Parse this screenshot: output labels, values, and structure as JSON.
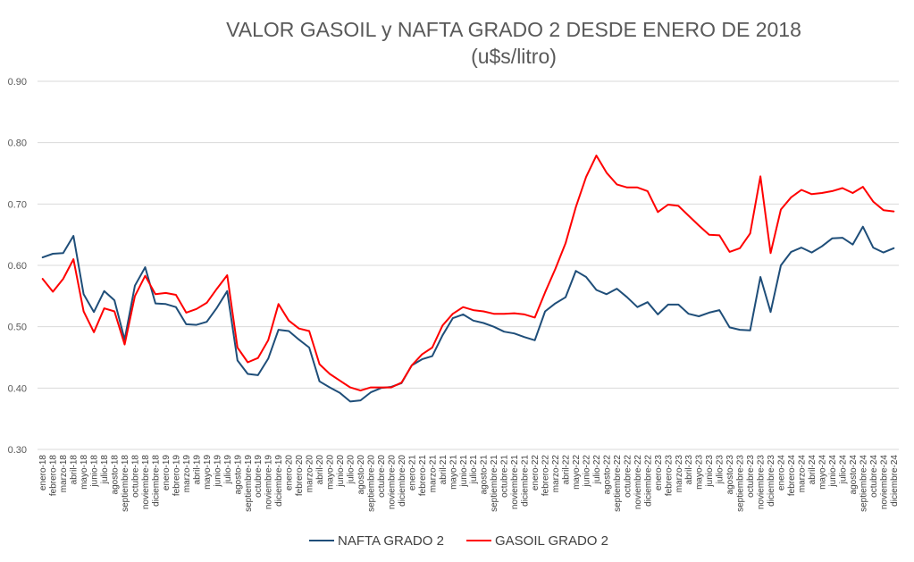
{
  "chart_data": {
    "type": "line",
    "title": "VALOR GASOIL y NAFTA GRADO 2 DESDE ENERO DE 2018",
    "subtitle": "(u$s/litro)",
    "ylim": [
      0.3,
      0.9
    ],
    "yticks": [
      "0.30",
      "0.40",
      "0.50",
      "0.60",
      "0.70",
      "0.80",
      "0.90"
    ],
    "grid": true,
    "legend_position": "bottom",
    "categories": [
      "enero-18",
      "febrero-18",
      "marzo-18",
      "abril-18",
      "mayo-18",
      "junio-18",
      "julio-18",
      "agosto-18",
      "septiembre-18",
      "octubre-18",
      "noviembre-18",
      "diciembre-18",
      "enero-19",
      "febrero-19",
      "marzo-19",
      "abril-19",
      "mayo-19",
      "junio-19",
      "julio-19",
      "agosto-19",
      "septiembre-19",
      "octubre-19",
      "noviembre-19",
      "diciembre-19",
      "enero-20",
      "febrero-20",
      "marzo-20",
      "abril-20",
      "mayo-20",
      "junio-20",
      "julio-20",
      "agosto-20",
      "septiembre-20",
      "octubre-20",
      "noviembre-20",
      "diciembre-20",
      "enero-21",
      "febrero-21",
      "marzo-21",
      "abril-21",
      "mayo-21",
      "junio-21",
      "julio-21",
      "agosto-21",
      "septiembre-21",
      "octubre-21",
      "noviembre-21",
      "diciembre-21",
      "enero-22",
      "febrero-22",
      "marzo-22",
      "abril-22",
      "mayo-22",
      "junio-22",
      "julio-22",
      "agosto-22",
      "septiembre-22",
      "octubre-22",
      "noviembre-22",
      "diciembre-22",
      "enero-23",
      "febrero-23",
      "marzo-23",
      "abril-23",
      "mayo-23",
      "junio-23",
      "julio-23",
      "agosto-23",
      "septiembre-23",
      "octubre-23",
      "noviembre-23",
      "diciembre-23",
      "enero-24",
      "febrero-24",
      "marzo-24",
      "abril-24",
      "mayo-24",
      "junio-24",
      "julio-24",
      "agosto-24",
      "septiembre-24",
      "octubre-24",
      "noviembre-24",
      "diciembre-24"
    ],
    "series": [
      {
        "name": "NAFTA GRADO 2",
        "color": "#1f4e79",
        "values": [
          0.613,
          0.619,
          0.62,
          0.648,
          0.553,
          0.524,
          0.558,
          0.543,
          0.479,
          0.567,
          0.597,
          0.538,
          0.537,
          0.532,
          0.504,
          0.503,
          0.508,
          0.531,
          0.558,
          0.445,
          0.423,
          0.421,
          0.448,
          0.495,
          0.493,
          0.479,
          0.466,
          0.411,
          0.401,
          0.392,
          0.378,
          0.38,
          0.393,
          0.4,
          0.402,
          0.408,
          0.437,
          0.447,
          0.452,
          0.486,
          0.514,
          0.52,
          0.51,
          0.506,
          0.5,
          0.492,
          0.489,
          0.483,
          0.478,
          0.525,
          0.538,
          0.548,
          0.591,
          0.581,
          0.56,
          0.553,
          0.562,
          0.548,
          0.532,
          0.54,
          0.52,
          0.536,
          0.536,
          0.521,
          0.517,
          0.523,
          0.527,
          0.499,
          0.495,
          0.494,
          0.581,
          0.524,
          0.6,
          0.622,
          0.629,
          0.621,
          0.631,
          0.644,
          0.645,
          0.634,
          0.663,
          0.629,
          0.621,
          0.628
        ]
      },
      {
        "name": "GASOIL GRADO 2",
        "color": "#ff0000",
        "values": [
          0.578,
          0.557,
          0.578,
          0.61,
          0.525,
          0.491,
          0.53,
          0.525,
          0.471,
          0.55,
          0.583,
          0.553,
          0.555,
          0.552,
          0.523,
          0.529,
          0.539,
          0.562,
          0.584,
          0.466,
          0.442,
          0.449,
          0.478,
          0.537,
          0.51,
          0.497,
          0.493,
          0.439,
          0.423,
          0.412,
          0.401,
          0.396,
          0.401,
          0.401,
          0.401,
          0.409,
          0.437,
          0.455,
          0.466,
          0.502,
          0.521,
          0.532,
          0.527,
          0.525,
          0.521,
          0.521,
          0.522,
          0.52,
          0.515,
          0.556,
          0.594,
          0.636,
          0.695,
          0.744,
          0.779,
          0.751,
          0.732,
          0.727,
          0.727,
          0.721,
          0.687,
          0.699,
          0.697,
          0.681,
          0.665,
          0.65,
          0.649,
          0.622,
          0.628,
          0.652,
          0.745,
          0.62,
          0.691,
          0.711,
          0.723,
          0.716,
          0.718,
          0.721,
          0.726,
          0.718,
          0.728,
          0.704,
          0.69,
          0.688
        ]
      }
    ]
  }
}
